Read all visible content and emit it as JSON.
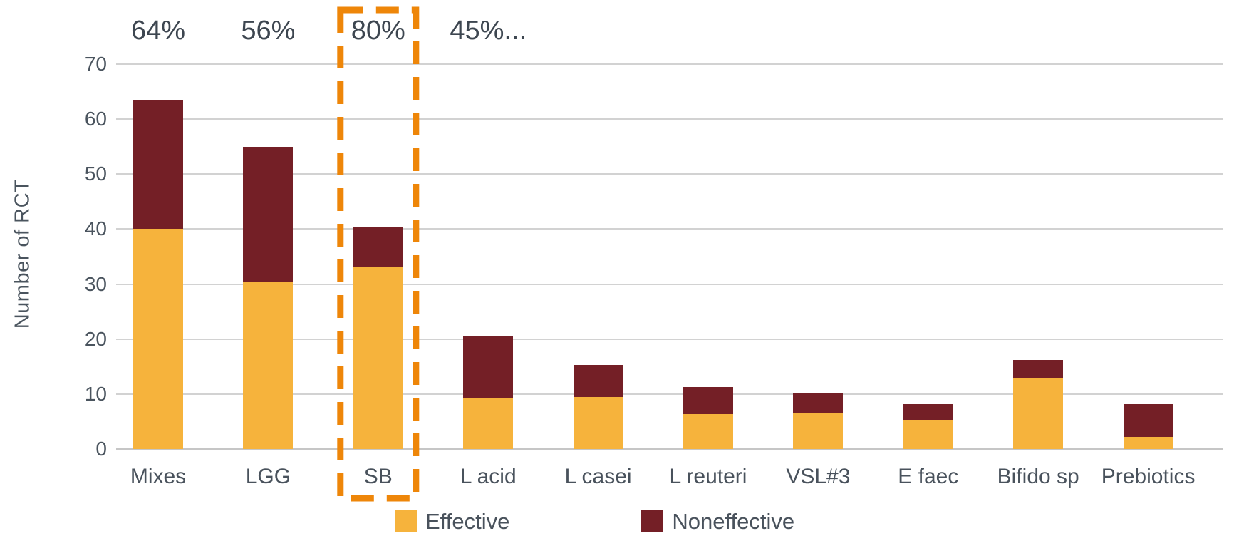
{
  "chart_data": {
    "type": "bar",
    "stacked": true,
    "title": "",
    "ylabel": "Number of RCT",
    "xlabel": "",
    "ylim": [
      0,
      70
    ],
    "yticks": [
      0,
      10,
      20,
      30,
      40,
      50,
      60,
      70
    ],
    "grid": "horizontal",
    "legend_position": "bottom-center",
    "categories": [
      "Mixes",
      "LGG",
      "SB",
      "L acid",
      "L casei",
      "L reuteri",
      "VSL#3",
      "E faec",
      "Bifido sp",
      "Prebiotics"
    ],
    "series": [
      {
        "name": "Effective",
        "color": "#F6B33C",
        "values": [
          40,
          30.5,
          33,
          9.2,
          9.5,
          6.3,
          6.5,
          5.3,
          13,
          2.2
        ]
      },
      {
        "name": "Noneffective",
        "color": "#741F26",
        "values": [
          23.5,
          24.5,
          7.5,
          11.3,
          5.8,
          5,
          3.8,
          2.9,
          3.2,
          6
        ]
      }
    ],
    "totals": [
      63.5,
      55,
      40.5,
      20.5,
      15.3,
      11.3,
      10.3,
      8.2,
      16.2,
      8.2
    ],
    "annotations": [
      {
        "category": "Mixes",
        "text": "64%"
      },
      {
        "category": "LGG",
        "text": "56%"
      },
      {
        "category": "SB",
        "text": "80%"
      },
      {
        "category": "L acid",
        "text": "45%..."
      }
    ],
    "highlight": {
      "category": "SB",
      "style": "dashed-box",
      "color": "#EE8609"
    }
  },
  "colors": {
    "effective": "#F6B33C",
    "noneffective": "#741F26",
    "highlight_box": "#EE8609",
    "gridline": "#D2D2D2",
    "axis_line": "#C6C6C6",
    "text": "#49525C"
  }
}
